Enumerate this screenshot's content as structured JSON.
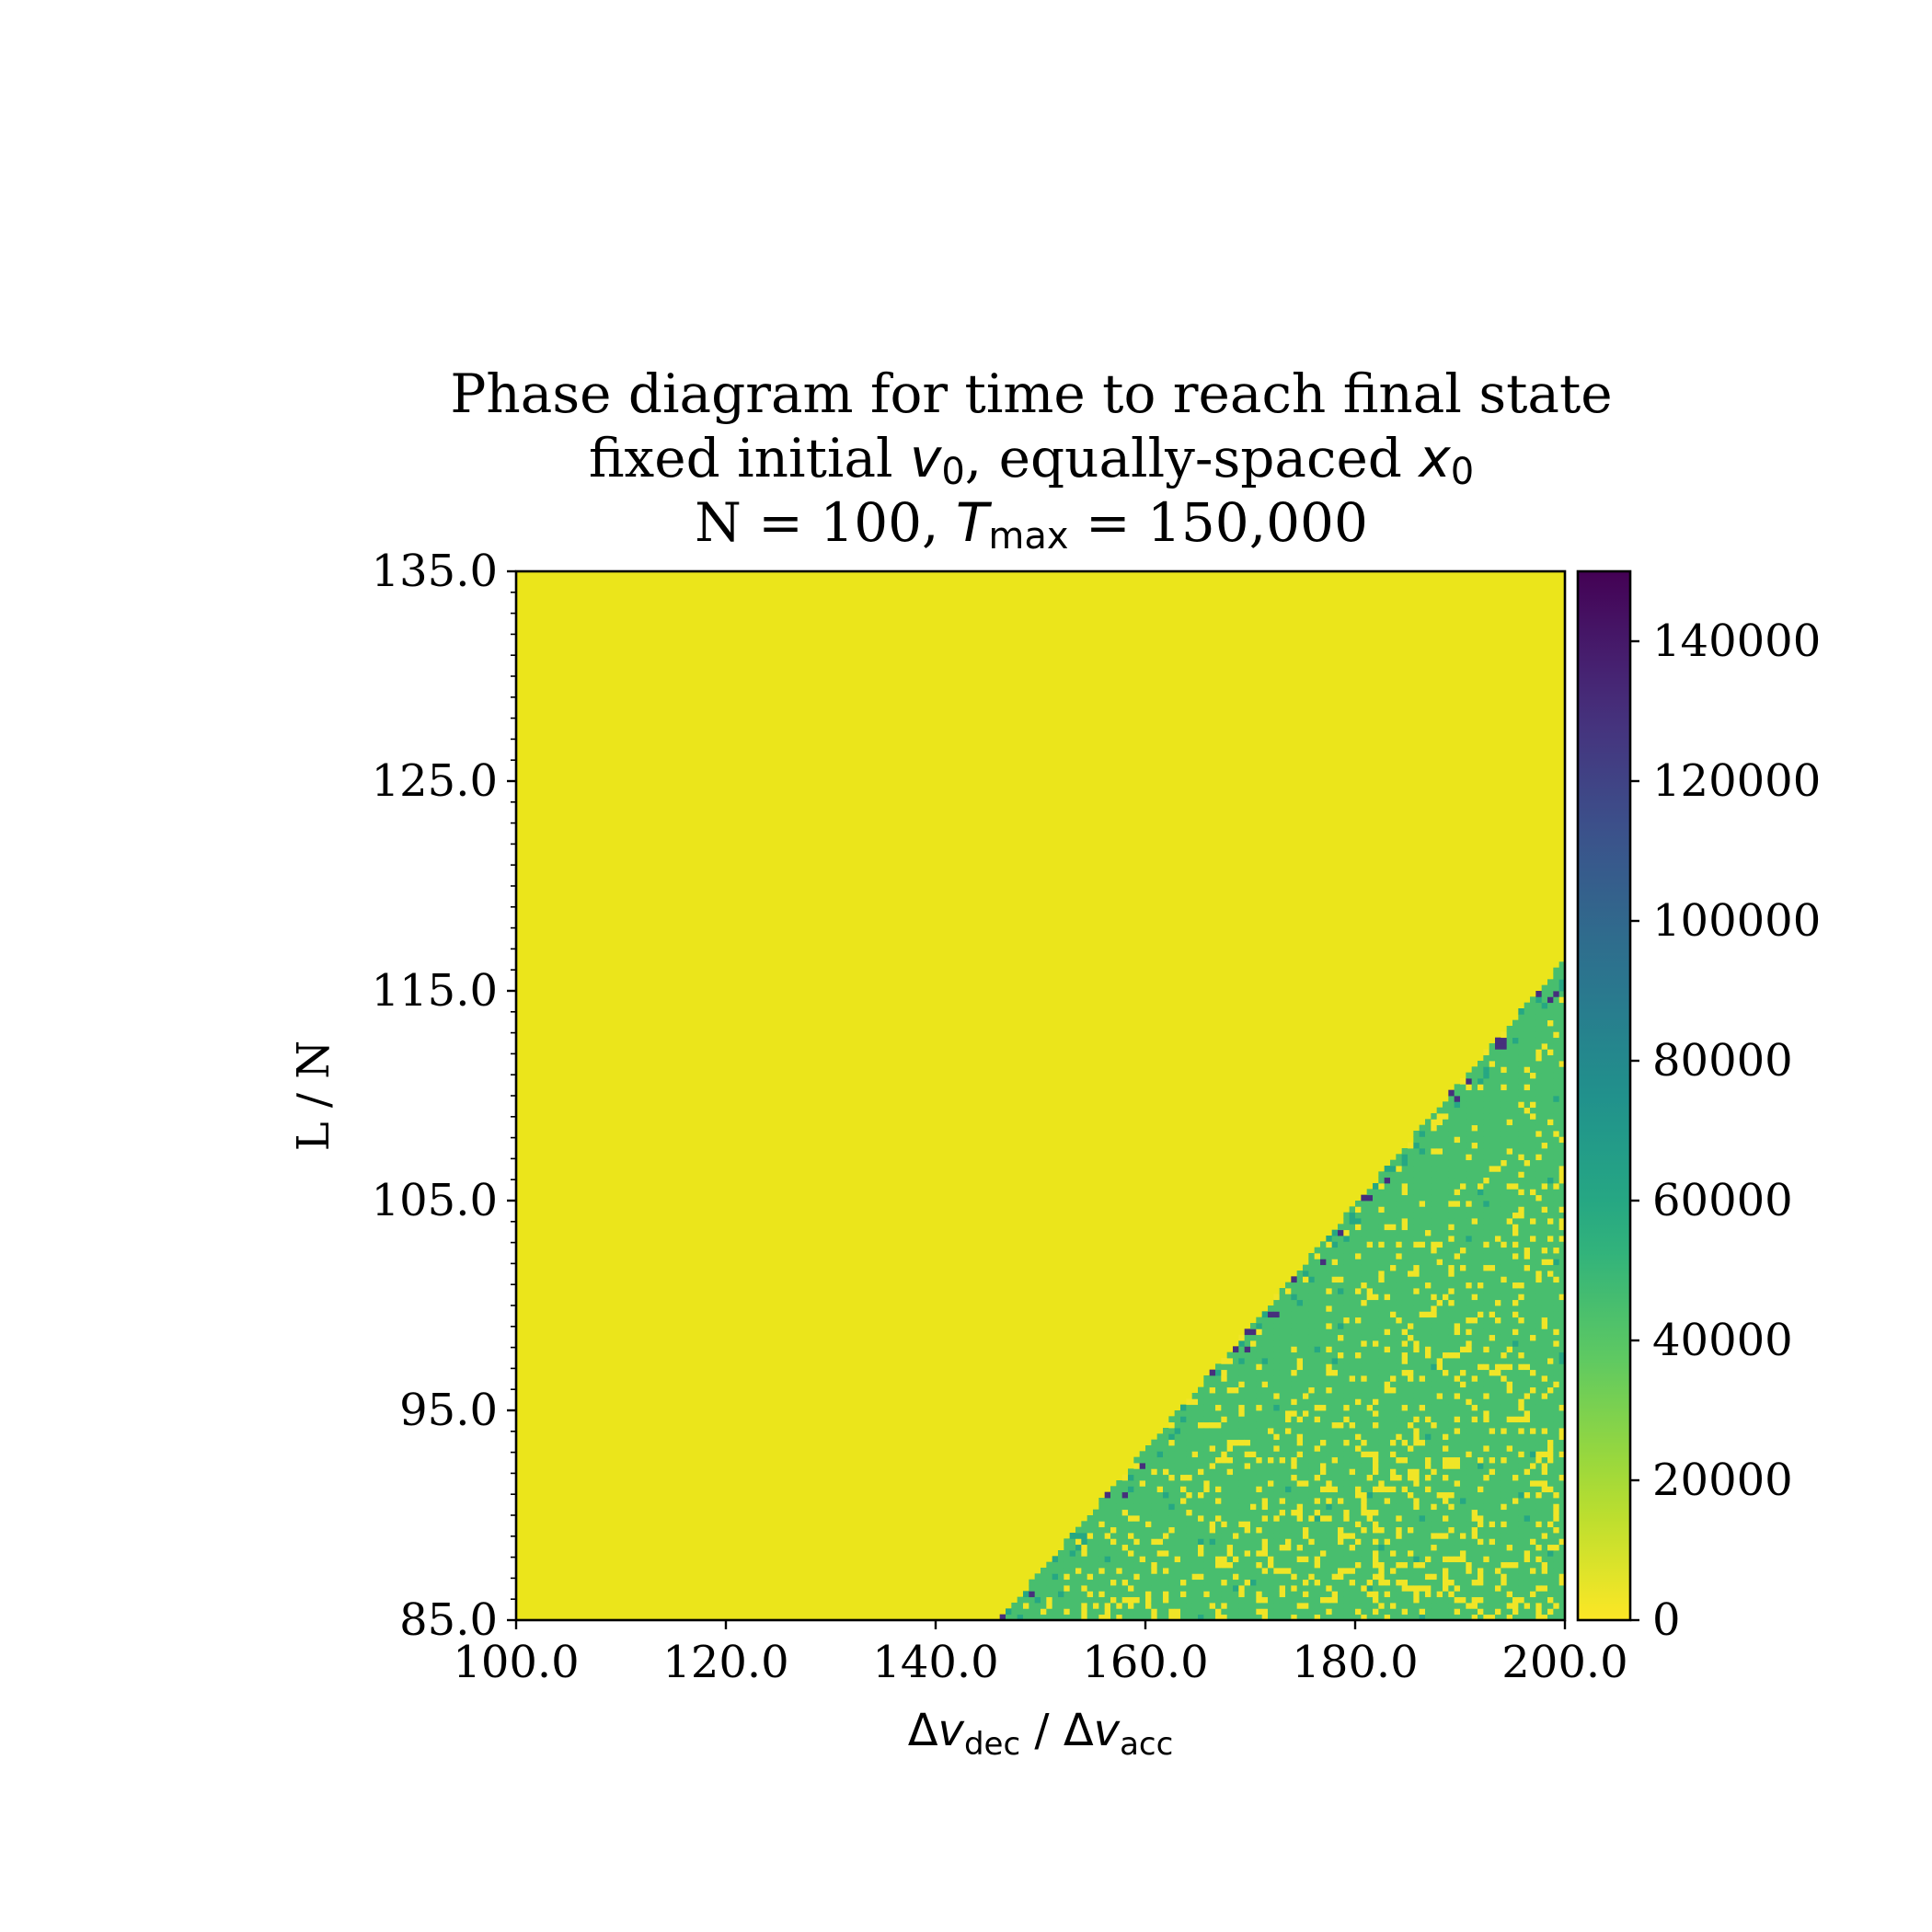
{
  "chart_data": {
    "type": "heatmap",
    "title": {
      "line1": "Phase diagram for time to reach final state",
      "line2_pre": "fixed initial ",
      "line2_var1": "v",
      "line2_sub1": "0",
      "line2_mid": ", equally-spaced ",
      "line2_var2": "x",
      "line2_sub2": "0",
      "line3_pre": "N = 100, ",
      "line3_var": "T",
      "line3_sub": "max",
      "line3_post": " = 150,000"
    },
    "xlabel": {
      "delta1": "Δ",
      "var1": "v",
      "sub1": "dec",
      "sep": " / ",
      "delta2": "Δ",
      "var2": "v",
      "sub2": "acc"
    },
    "ylabel": "L / N",
    "xlim": [
      100.0,
      200.0
    ],
    "ylim": [
      85.0,
      135.0
    ],
    "x_ticks": [
      {
        "value": 100,
        "label": "100.0"
      },
      {
        "value": 120,
        "label": "120.0"
      },
      {
        "value": 140,
        "label": "140.0"
      },
      {
        "value": 160,
        "label": "160.0"
      },
      {
        "value": 180,
        "label": "180.0"
      },
      {
        "value": 200,
        "label": "200.0"
      }
    ],
    "y_ticks": [
      {
        "value": 85,
        "label": "85.0"
      },
      {
        "value": 95,
        "label": "95.0"
      },
      {
        "value": 105,
        "label": "105.0"
      },
      {
        "value": 115,
        "label": "115.0"
      },
      {
        "value": 125,
        "label": "125.0"
      },
      {
        "value": 135,
        "label": "135.0"
      }
    ],
    "colorbar": {
      "colormap": "viridis_r",
      "min": 0,
      "max": 150000,
      "ticks": [
        {
          "value": 0,
          "label": "0"
        },
        {
          "value": 20000,
          "label": "20000"
        },
        {
          "value": 40000,
          "label": "40000"
        },
        {
          "value": 60000,
          "label": "60000"
        },
        {
          "value": 80000,
          "label": "80000"
        },
        {
          "value": 100000,
          "label": "100000"
        },
        {
          "value": 120000,
          "label": "120000"
        },
        {
          "value": 140000,
          "label": "140000"
        }
      ]
    },
    "regions": [
      {
        "region": "above boundary",
        "value_approx": 3000
      },
      {
        "region": "below boundary",
        "value_approx": 45000,
        "contains_scattered_cells_near": [
          3000,
          60000,
          130000
        ]
      }
    ],
    "phase_boundary": {
      "x": [
        146.0,
        200.0
      ],
      "y": [
        85.0,
        116.5
      ]
    },
    "grid": false,
    "legend": "none"
  }
}
